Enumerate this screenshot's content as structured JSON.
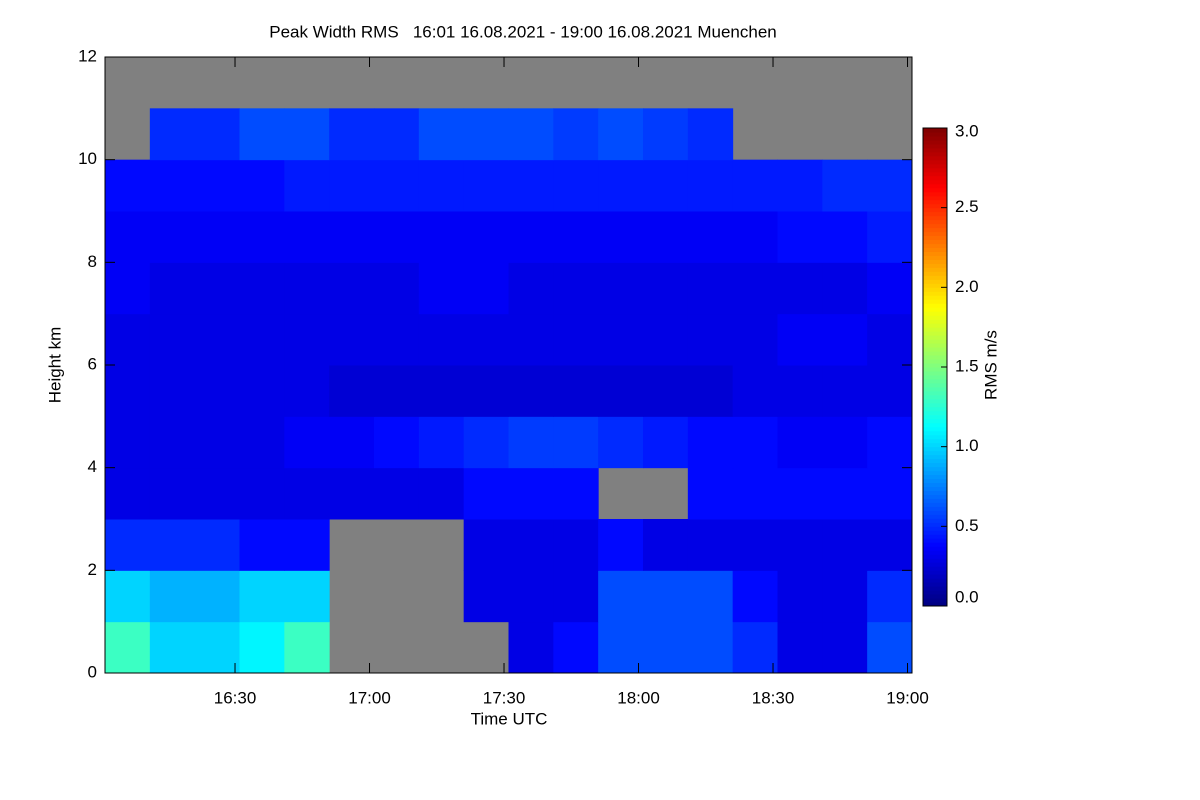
{
  "chart_data": {
    "type": "heatmap",
    "title": "Peak Width RMS   16:01 16.08.2021 - 19:00 16.08.2021 Muenchen",
    "xlabel": "Time UTC",
    "ylabel": "Height km",
    "colorbar_label": "RMS m/s",
    "x_edges": [
      961,
      971,
      981,
      991,
      1001,
      1011,
      1021,
      1031,
      1041,
      1051,
      1061,
      1071,
      1081,
      1091,
      1101,
      1111,
      1121,
      1131,
      1141
    ],
    "y_edges": [
      0,
      1,
      2,
      3,
      4,
      5,
      6,
      7,
      8,
      9,
      10,
      11,
      12
    ],
    "z": [
      [
        1.3,
        1.0,
        1.0,
        1.1,
        1.3,
        null,
        null,
        null,
        null,
        0.3,
        0.4,
        0.6,
        0.6,
        0.6,
        0.5,
        0.3,
        0.3,
        0.6
      ],
      [
        1.0,
        0.9,
        0.9,
        1.0,
        1.0,
        null,
        null,
        null,
        0.3,
        0.3,
        0.3,
        0.6,
        0.6,
        0.6,
        0.4,
        0.3,
        0.3,
        0.5
      ],
      [
        0.5,
        0.5,
        0.5,
        0.4,
        0.4,
        null,
        null,
        null,
        0.3,
        0.3,
        0.3,
        0.4,
        0.3,
        0.3,
        0.3,
        0.3,
        0.3,
        0.3
      ],
      [
        0.3,
        0.3,
        0.3,
        0.3,
        0.3,
        0.3,
        0.3,
        0.3,
        0.4,
        0.4,
        0.4,
        null,
        null,
        0.4,
        0.4,
        0.4,
        0.4,
        0.4
      ],
      [
        0.3,
        0.3,
        0.3,
        0.3,
        0.35,
        0.35,
        0.4,
        0.45,
        0.5,
        0.55,
        0.55,
        0.5,
        0.45,
        0.4,
        0.4,
        0.35,
        0.35,
        0.4
      ],
      [
        0.3,
        0.3,
        0.3,
        0.3,
        0.3,
        0.25,
        0.25,
        0.25,
        0.25,
        0.25,
        0.25,
        0.25,
        0.25,
        0.25,
        0.3,
        0.3,
        0.3,
        0.3
      ],
      [
        0.3,
        0.3,
        0.3,
        0.3,
        0.3,
        0.3,
        0.3,
        0.3,
        0.3,
        0.3,
        0.3,
        0.3,
        0.3,
        0.3,
        0.3,
        0.35,
        0.35,
        0.3
      ],
      [
        0.35,
        0.3,
        0.3,
        0.3,
        0.3,
        0.3,
        0.3,
        0.35,
        0.35,
        0.3,
        0.3,
        0.3,
        0.3,
        0.3,
        0.3,
        0.3,
        0.3,
        0.35
      ],
      [
        0.35,
        0.35,
        0.35,
        0.35,
        0.35,
        0.35,
        0.35,
        0.35,
        0.35,
        0.35,
        0.35,
        0.35,
        0.35,
        0.35,
        0.35,
        0.4,
        0.4,
        0.45
      ],
      [
        0.4,
        0.4,
        0.4,
        0.4,
        0.45,
        0.45,
        0.45,
        0.45,
        0.45,
        0.45,
        0.45,
        0.45,
        0.45,
        0.45,
        0.45,
        0.45,
        0.5,
        0.5
      ],
      [
        null,
        0.5,
        0.5,
        0.6,
        0.6,
        0.5,
        0.5,
        0.6,
        0.6,
        0.6,
        0.55,
        0.6,
        0.55,
        0.5,
        null,
        null,
        null,
        null
      ],
      [
        null,
        null,
        null,
        null,
        null,
        null,
        null,
        null,
        null,
        null,
        null,
        null,
        null,
        null,
        null,
        null,
        null,
        null
      ]
    ],
    "xlim": [
      961,
      1141
    ],
    "ylim": [
      0,
      12
    ],
    "xticks": [
      {
        "value": 990,
        "label": "16:30"
      },
      {
        "value": 1020,
        "label": "17:00"
      },
      {
        "value": 1050,
        "label": "17:30"
      },
      {
        "value": 1080,
        "label": "18:00"
      },
      {
        "value": 1110,
        "label": "18:30"
      },
      {
        "value": 1140,
        "label": "19:00"
      }
    ],
    "yticks": [
      0,
      2,
      4,
      6,
      8,
      10,
      12
    ],
    "clim": [
      0,
      3
    ],
    "cticks": [
      {
        "value": 0,
        "label": "0.0"
      },
      {
        "value": 0.5,
        "label": "0.5"
      },
      {
        "value": 1,
        "label": "1.0"
      },
      {
        "value": 1.5,
        "label": "1.5"
      },
      {
        "value": 2,
        "label": "2.0"
      },
      {
        "value": 2.5,
        "label": "2.5"
      },
      {
        "value": 3,
        "label": "3.0"
      }
    ],
    "colormap": [
      "#00007f",
      "#0000ff",
      "#007fff",
      "#00ffff",
      "#7fff7f",
      "#ffff00",
      "#ff7f00",
      "#ff0000",
      "#7f0000"
    ],
    "missing_color": "#808080"
  }
}
